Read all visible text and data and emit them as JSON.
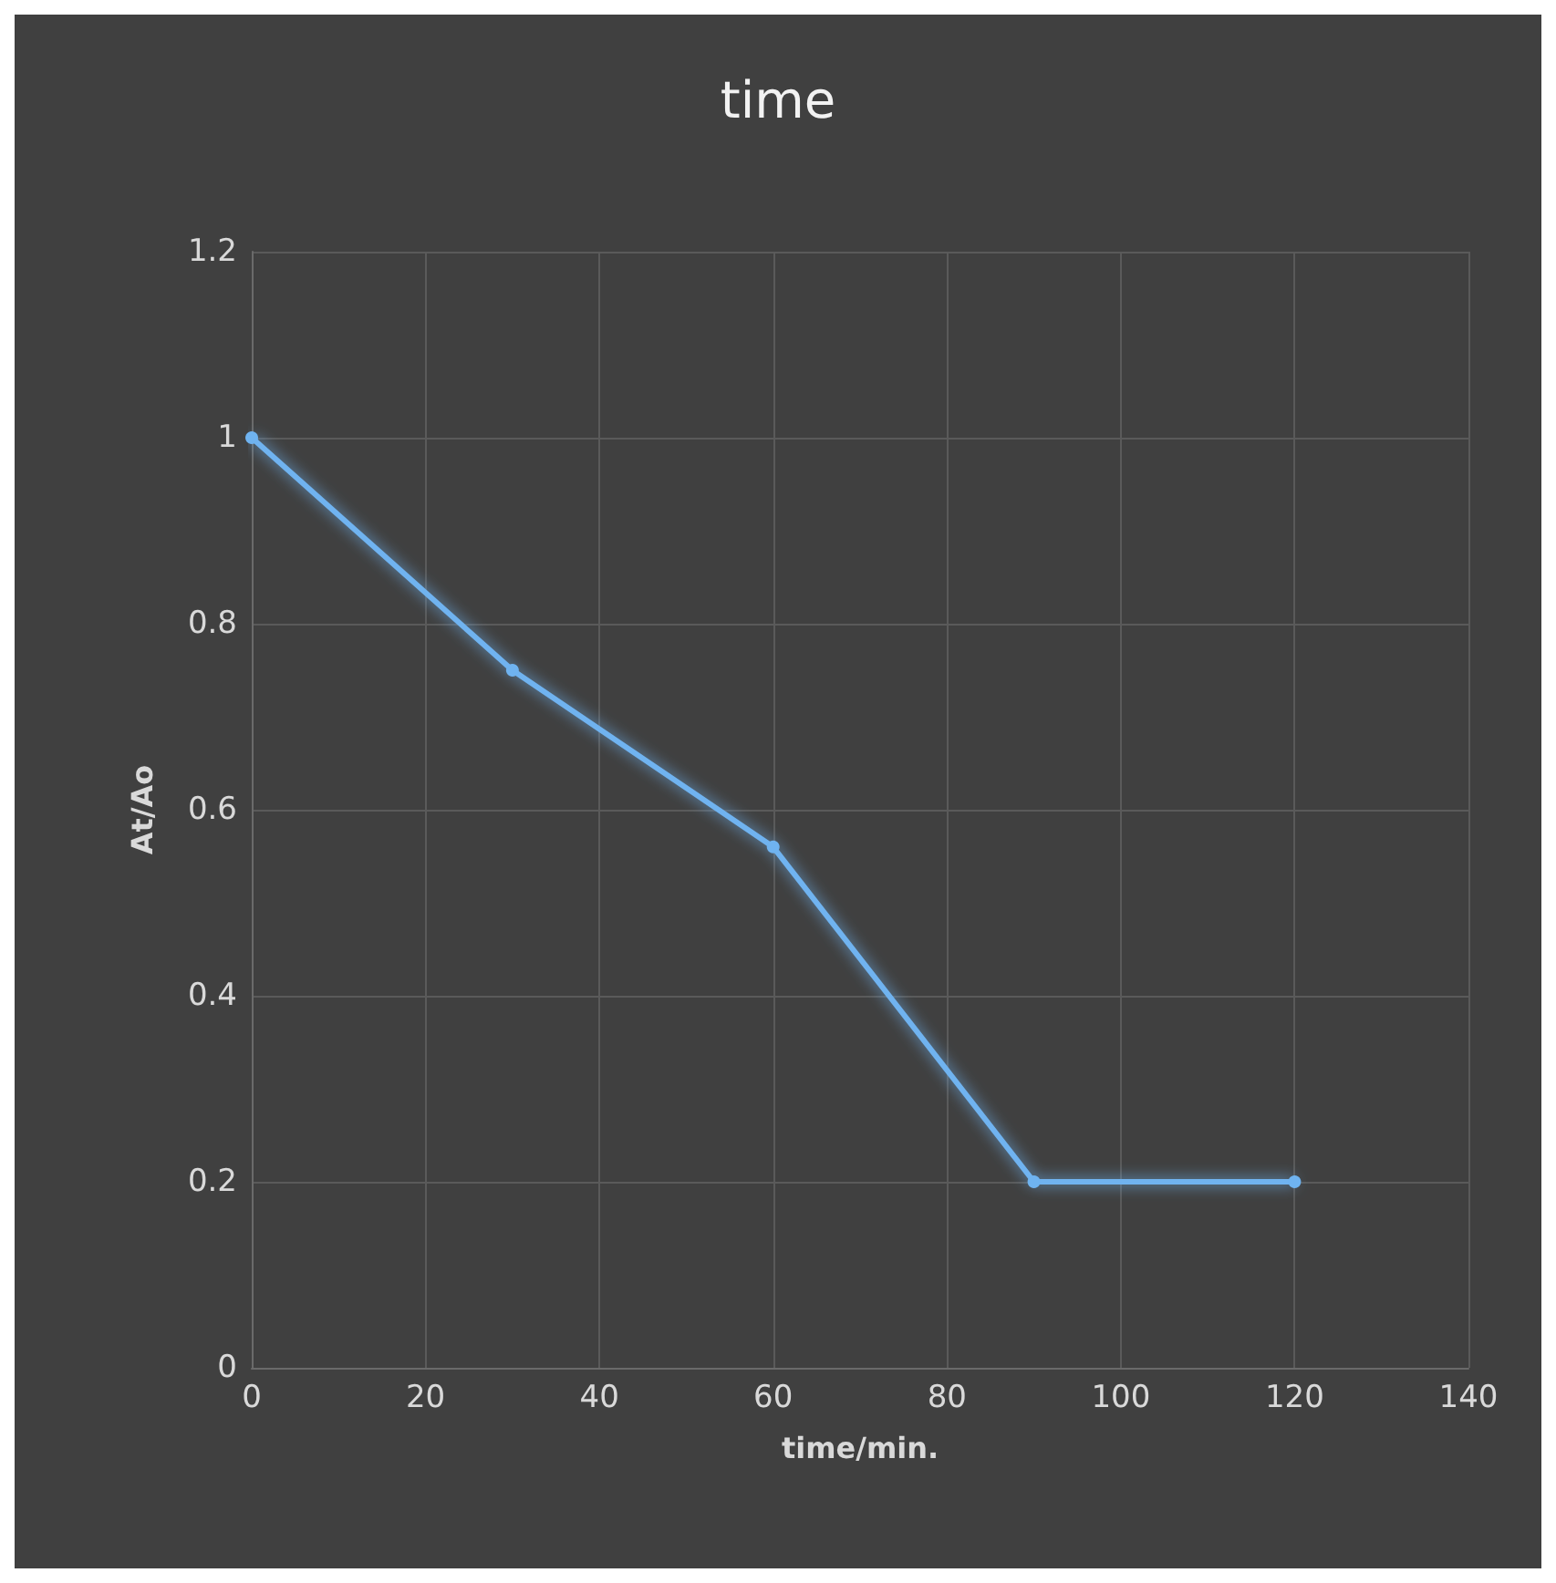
{
  "chart_data": {
    "type": "line",
    "title": "time",
    "xlabel": "time/min.",
    "ylabel": "At/Ao",
    "x": [
      0,
      30,
      60,
      90,
      120
    ],
    "series": [
      {
        "color": "#6fb3f0",
        "values": [
          1,
          0.75,
          0.56,
          0.2,
          0.2
        ]
      }
    ],
    "xlim": [
      0,
      140
    ],
    "xticks": [
      0,
      20,
      40,
      60,
      80,
      100,
      120,
      140
    ],
    "ylim": [
      0,
      1.2
    ],
    "yticks": [
      0,
      0.2,
      0.4,
      0.6,
      0.8,
      1,
      1.2
    ],
    "grid": true,
    "marker": "circle",
    "line_style": "solid"
  }
}
